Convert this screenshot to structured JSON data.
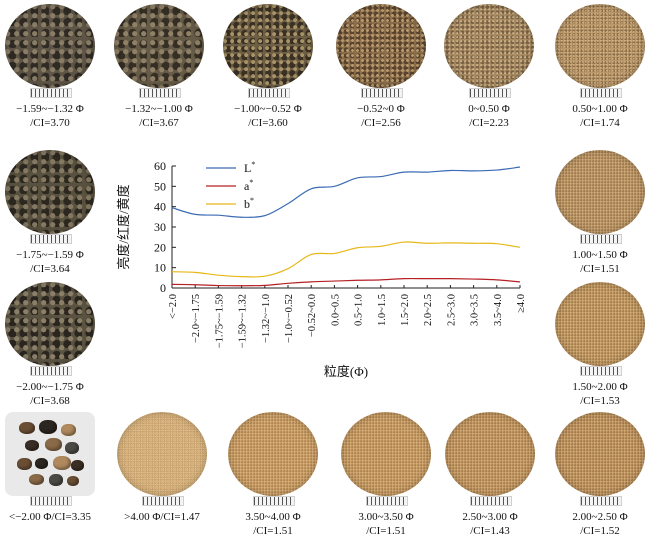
{
  "colors": {
    "L": "#3b6bb5",
    "a": "#b52025",
    "b": "#e6b817",
    "axis": "#222222"
  },
  "samples": [
    {
      "id": "s1",
      "line1": "−1.59~−1.32 Φ",
      "line2": "/CI=3.70",
      "texture": "dark-coarse",
      "c1": "#5e5546",
      "c2": "#2f2a24",
      "c3": "#8a7d66"
    },
    {
      "id": "s2",
      "line1": "−1.32~−1.00 Φ",
      "line2": "/CI=3.67",
      "texture": "dark-coarse",
      "c1": "#665b47",
      "c2": "#342e25",
      "c3": "#8f8066"
    },
    {
      "id": "s3",
      "line1": "−1.00~−0.52 Φ",
      "line2": "/CI=3.60",
      "texture": "mixed-coarse",
      "c1": "#6e5f44",
      "c2": "#3a3024",
      "c3": "#a89468"
    },
    {
      "id": "s4",
      "line1": "−0.52~0 Φ",
      "line2": "/CI=2.56",
      "texture": "brown",
      "c1": "#8c6f4a",
      "c2": "#5a4430",
      "c3": "#b89a6e"
    },
    {
      "id": "s5",
      "line1": "0~0.50 Φ",
      "line2": "/CI=2.23",
      "texture": "tan",
      "c1": "#a88b62",
      "c2": "#7a6345",
      "c3": "#cdb48a"
    },
    {
      "id": "s6",
      "line1": "0.50~1.00 Φ",
      "line2": "/CI=1.74",
      "texture": "light",
      "c1": "#b99567",
      "c2": "#8e6f4a",
      "c3": "#d8bd8e"
    },
    {
      "id": "s7",
      "line1": "−1.75~−1.59 Φ",
      "line2": "/CI=3.64",
      "texture": "dark-coarse",
      "c1": "#59513f",
      "c2": "#2c2820",
      "c3": "#857962"
    },
    {
      "id": "s8",
      "line1": "1.00~1.50 Φ",
      "line2": "/CI=1.51",
      "texture": "fine",
      "c1": "#c39c6a",
      "c2": "#a27d52",
      "c3": "#dbbd8e"
    },
    {
      "id": "s9",
      "line1": "−2.00~−1.75 Φ",
      "line2": "/CI=3.68",
      "texture": "dark-coarse",
      "c1": "#5b5342",
      "c2": "#2a261f",
      "c3": "#8b7f68"
    },
    {
      "id": "s10",
      "line1": "1.50~2.00 Φ",
      "line2": "/CI=1.53",
      "texture": "fine",
      "c1": "#c89f68",
      "c2": "#a8804f",
      "c3": "#dfc08c"
    },
    {
      "id": "s11",
      "line1": "<−2.00 Φ/CI=3.35",
      "line2": "",
      "texture": "pebbles",
      "c1": "#6b4f35",
      "c2": "#2c2620",
      "c3": "#b08a5e"
    },
    {
      "id": "s12",
      "line1": ">4.00 Φ/CI=1.47",
      "line2": "",
      "texture": "silt",
      "c1": "#d4b07c",
      "c2": "#c29c68",
      "c3": "#e4c898"
    },
    {
      "id": "s13",
      "line1": "3.50~4.00 Φ",
      "line2": "/CI=1.51",
      "texture": "fine",
      "c1": "#cfa46c",
      "c2": "#b38753",
      "c3": "#e2c18f"
    },
    {
      "id": "s14",
      "line1": "3.00~3.50 Φ",
      "line2": "/CI=1.51",
      "texture": "fine",
      "c1": "#cda26a",
      "c2": "#b08552",
      "c3": "#e0bf8c"
    },
    {
      "id": "s15",
      "line1": "2.50~3.00 Φ",
      "line2": "/CI=1.43",
      "texture": "fine",
      "c1": "#c99e67",
      "c2": "#ab8050",
      "c3": "#dfbf8c"
    },
    {
      "id": "s16",
      "line1": "2.00~2.50 Φ",
      "line2": "/CI=1.52",
      "texture": "fine",
      "c1": "#c79c66",
      "c2": "#a77d4e",
      "c3": "#ddbc8a"
    }
  ],
  "chart_data": {
    "type": "line",
    "xlabel": "粒度(Φ)",
    "ylabel": "亮度/红度/黄度",
    "ylim": [
      0,
      60
    ],
    "yticks": [
      0,
      10,
      20,
      30,
      40,
      50,
      60
    ],
    "grid": false,
    "legend_position": "top-left",
    "categories": [
      "<−2.0",
      "−2.0~−1.75",
      "−1.75~−1.59",
      "−1.59~−1.32",
      "−1.32~−1.0",
      "−1.0~−0.52",
      "−0.52~0.0",
      "0.0~0.5",
      "0.5~1.0",
      "1.0~1.5",
      "1.5~2.0",
      "2.0~2.5",
      "2.5~3.0",
      "3.0~3.5",
      "3.5~4.0",
      "≥4.0"
    ],
    "series": [
      {
        "name": "L*",
        "label_main": "L",
        "label_sup": "*",
        "color": "#3b6bb5",
        "values": [
          39.5,
          36.2,
          35.8,
          34.8,
          35.6,
          41.5,
          48.8,
          50.0,
          54.2,
          54.8,
          57.0,
          57.0,
          57.8,
          57.6,
          58.0,
          59.5
        ]
      },
      {
        "name": "a*",
        "label_main": "a",
        "label_sup": "*",
        "color": "#b52025",
        "values": [
          1.8,
          1.6,
          1.2,
          1.1,
          1.3,
          2.3,
          3.0,
          3.4,
          3.8,
          4.0,
          4.6,
          4.6,
          4.6,
          4.4,
          4.0,
          3.0
        ]
      },
      {
        "name": "b*",
        "label_main": "b",
        "label_sup": "*",
        "color": "#e6b817",
        "values": [
          8.0,
          7.7,
          6.3,
          5.6,
          5.8,
          9.5,
          16.5,
          17.0,
          19.8,
          20.5,
          22.6,
          22.0,
          22.2,
          22.0,
          21.8,
          20.0
        ]
      }
    ]
  }
}
